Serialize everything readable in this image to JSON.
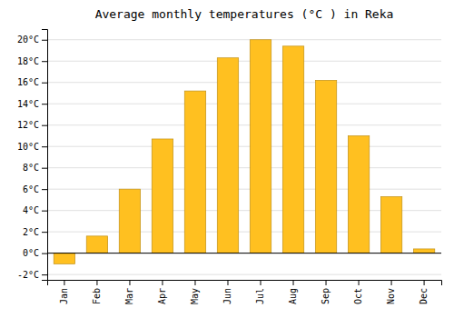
{
  "chart_data": {
    "type": "bar",
    "title": "Average monthly temperatures (°C ) in Reka",
    "categories": [
      "Jan",
      "Feb",
      "Mar",
      "Apr",
      "May",
      "Jun",
      "Jul",
      "Aug",
      "Sep",
      "Oct",
      "Nov",
      "Dec"
    ],
    "values": [
      -1.0,
      1.6,
      6.0,
      10.7,
      15.2,
      18.3,
      20.0,
      19.4,
      16.2,
      11.0,
      5.3,
      0.4
    ],
    "color": "#FFC020",
    "ylim": [
      -2.5,
      21
    ],
    "yticks": [
      {
        "value": -2,
        "label": "-2°C"
      },
      {
        "value": 0,
        "label": "0°C"
      },
      {
        "value": 2,
        "label": "2°C"
      },
      {
        "value": 4,
        "label": "4°C"
      },
      {
        "value": 6,
        "label": "6°C"
      },
      {
        "value": 8,
        "label": "8°C"
      },
      {
        "value": 10,
        "label": "10°C"
      },
      {
        "value": 12,
        "label": "12°C"
      },
      {
        "value": 14,
        "label": "14°C"
      },
      {
        "value": 16,
        "label": "16°C"
      },
      {
        "value": 18,
        "label": "18°C"
      },
      {
        "value": 20,
        "label": "20°C"
      }
    ],
    "grid": true
  }
}
